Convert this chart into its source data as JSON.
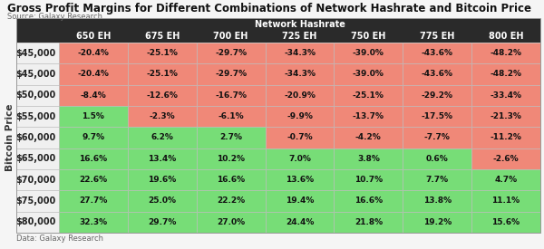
{
  "title": "Gross Profit Margins for Different Combinations of Network Hashrate and Bitcoin Price",
  "source_top": "Source: Galaxy Research",
  "source_bottom": "Data: Galaxy Research",
  "col_header_group": "Network Hashrate",
  "col_headers": [
    "650 EH",
    "675 EH",
    "700 EH",
    "725 EH",
    "750 EH",
    "775 EH",
    "800 EH"
  ],
  "row_headers": [
    "$45,000",
    "$45,000",
    "$50,000",
    "$55,000",
    "$60,000",
    "$65,000",
    "$70,000",
    "$75,000",
    "$80,000"
  ],
  "row_label": "Bitcoin Price",
  "values": [
    [
      -20.4,
      -25.1,
      -29.7,
      -34.3,
      -39.0,
      -43.6,
      -48.2
    ],
    [
      -20.4,
      -25.1,
      -29.7,
      -34.3,
      -39.0,
      -43.6,
      -48.2
    ],
    [
      -8.4,
      -12.6,
      -16.7,
      -20.9,
      -25.1,
      -29.2,
      -33.4
    ],
    [
      1.5,
      -2.3,
      -6.1,
      -9.9,
      -13.7,
      -17.5,
      -21.3
    ],
    [
      9.7,
      6.2,
      2.7,
      -0.7,
      -4.2,
      -7.7,
      -11.2
    ],
    [
      16.6,
      13.4,
      10.2,
      7.0,
      3.8,
      0.6,
      -2.6
    ],
    [
      22.6,
      19.6,
      16.6,
      13.6,
      10.7,
      7.7,
      4.7
    ],
    [
      27.7,
      25.0,
      22.2,
      19.4,
      16.6,
      13.8,
      11.1
    ],
    [
      32.3,
      29.7,
      27.0,
      24.4,
      21.8,
      19.2,
      15.6
    ]
  ],
  "value_labels": [
    [
      "-20.4%",
      "-25.1%",
      "-29.7%",
      "-34.3%",
      "-39.0%",
      "-43.6%",
      "-48.2%"
    ],
    [
      "-20.4%",
      "-25.1%",
      "-29.7%",
      "-34.3%",
      "-39.0%",
      "-43.6%",
      "-48.2%"
    ],
    [
      "-8.4%",
      "-12.6%",
      "-16.7%",
      "-20.9%",
      "-25.1%",
      "-29.2%",
      "-33.4%"
    ],
    [
      "1.5%",
      "-2.3%",
      "-6.1%",
      "-9.9%",
      "-13.7%",
      "-17.5%",
      "-21.3%"
    ],
    [
      "9.7%",
      "6.2%",
      "2.7%",
      "-0.7%",
      "-4.2%",
      "-7.7%",
      "-11.2%"
    ],
    [
      "16.6%",
      "13.4%",
      "10.2%",
      "7.0%",
      "3.8%",
      "0.6%",
      "-2.6%"
    ],
    [
      "22.6%",
      "19.6%",
      "16.6%",
      "13.6%",
      "10.7%",
      "7.7%",
      "4.7%"
    ],
    [
      "27.7%",
      "25.0%",
      "22.2%",
      "19.4%",
      "16.6%",
      "13.8%",
      "11.1%"
    ],
    [
      "32.3%",
      "29.7%",
      "27.0%",
      "24.4%",
      "21.8%",
      "19.2%",
      "15.6%"
    ]
  ],
  "color_positive": "#77dd77",
  "color_negative": "#f08878",
  "header_bg": "#2a2a2a",
  "header_text": "#ffffff",
  "border_color": "#bbbbbb",
  "title_fontsize": 8.5,
  "source_fontsize": 6.0,
  "header_fontsize": 7.0,
  "cell_fontsize": 6.5,
  "row_header_fontsize": 7.0,
  "row_label_fontsize": 7.5,
  "background_color": "#f5f5f5"
}
